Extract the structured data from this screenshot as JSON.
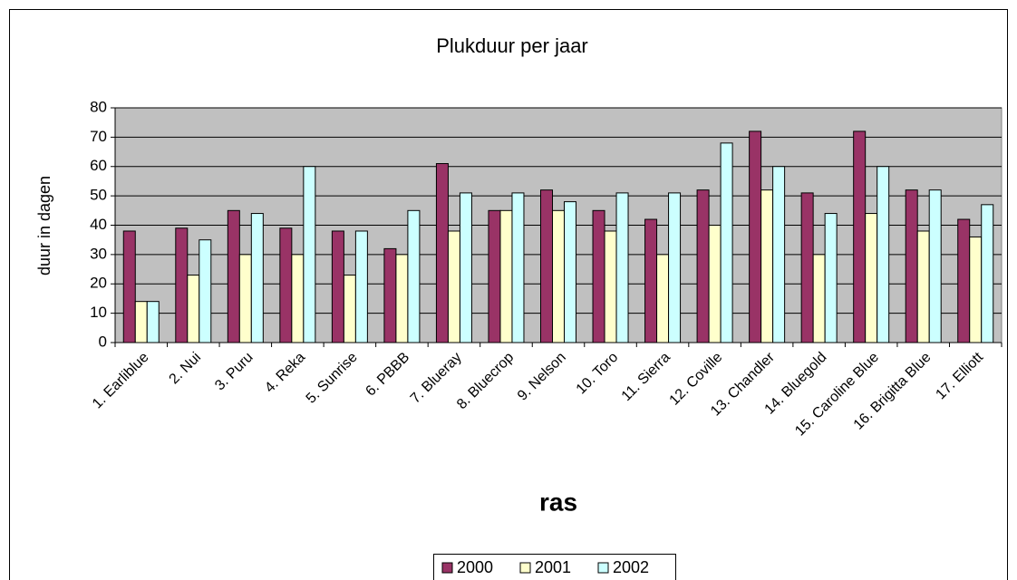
{
  "chart_data": {
    "type": "bar",
    "title": "Plukduur per jaar",
    "x_label": "ras",
    "y_label": "duur in dagen",
    "categories": [
      "1. Earliblue",
      "2. Nui",
      "3. Puru",
      "4. Reka",
      "5. Sunrise",
      "6. PBBB",
      "7. Blueray",
      "8. Bluecrop",
      "9. Nelson",
      "10. Toro",
      "11. Sierra",
      "12. Coville",
      "13. Chandler",
      "14. Bluegold",
      "15. Caroline Blue",
      "16. Brigitta Blue",
      "17. Elliott"
    ],
    "series": [
      {
        "name": "2000",
        "color": "#993366",
        "values": [
          38,
          39,
          45,
          39,
          38,
          32,
          61,
          45,
          52,
          45,
          42,
          52,
          72,
          51,
          72,
          52,
          42
        ]
      },
      {
        "name": "2001",
        "color": "#ffffcc",
        "values": [
          14,
          23,
          30,
          30,
          23,
          30,
          38,
          45,
          45,
          38,
          30,
          40,
          52,
          30,
          44,
          38,
          36
        ]
      },
      {
        "name": "2002",
        "color": "#ccffff",
        "values": [
          14,
          35,
          44,
          60,
          38,
          45,
          51,
          51,
          48,
          51,
          51,
          68,
          60,
          44,
          60,
          52,
          47
        ]
      }
    ],
    "ylim": [
      0,
      80
    ],
    "yticks": [
      0,
      10,
      20,
      30,
      40,
      50,
      60,
      70,
      80
    ],
    "grid": true,
    "legend": "bottom"
  }
}
